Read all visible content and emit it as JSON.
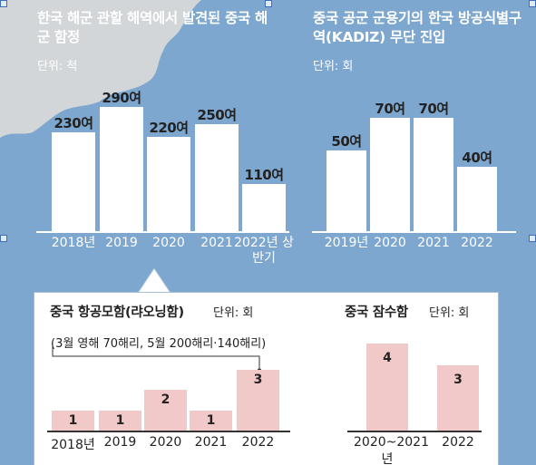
{
  "chart_data": [
    {
      "type": "bar",
      "title": "한국 해군 관할 해역에서 발견된 중국 해군 함정",
      "unit": "단위: 척",
      "categories": [
        "2018년",
        "2019",
        "2020",
        "2021",
        "2022년 상반기"
      ],
      "values": [
        230,
        290,
        220,
        250,
        110
      ],
      "value_labels": [
        "230여",
        "290여",
        "220여",
        "250여",
        "110여"
      ],
      "ylim": [
        0,
        290
      ]
    },
    {
      "type": "bar",
      "title": "중국 공군 군용기의 한국 방공식별구역(KADIZ) 무단 진입",
      "unit": "단위: 회",
      "categories": [
        "2019년",
        "2020",
        "2021",
        "2022"
      ],
      "values": [
        50,
        70,
        70,
        40
      ],
      "value_labels": [
        "50여",
        "70여",
        "70여",
        "40여"
      ],
      "ylim": [
        0,
        70
      ]
    },
    {
      "type": "bar",
      "title": "중국 항공모함(랴오닝함)",
      "unit": "단위: 회",
      "annotation": "(3월 영해 70해리, 5월 200해리·140해리)",
      "categories": [
        "2018년",
        "2019",
        "2020",
        "2021",
        "2022"
      ],
      "values": [
        1,
        1,
        2,
        1,
        3
      ],
      "value_labels": [
        "1",
        "1",
        "2",
        "1",
        "3"
      ],
      "ylim": [
        0,
        3
      ]
    },
    {
      "type": "bar",
      "title": "중국 잠수함",
      "unit": "단위: 회",
      "categories": [
        "2020~2021년",
        "2022"
      ],
      "values": [
        4,
        3
      ],
      "value_labels": [
        "4",
        "3"
      ],
      "ylim": [
        0,
        4
      ]
    }
  ]
}
